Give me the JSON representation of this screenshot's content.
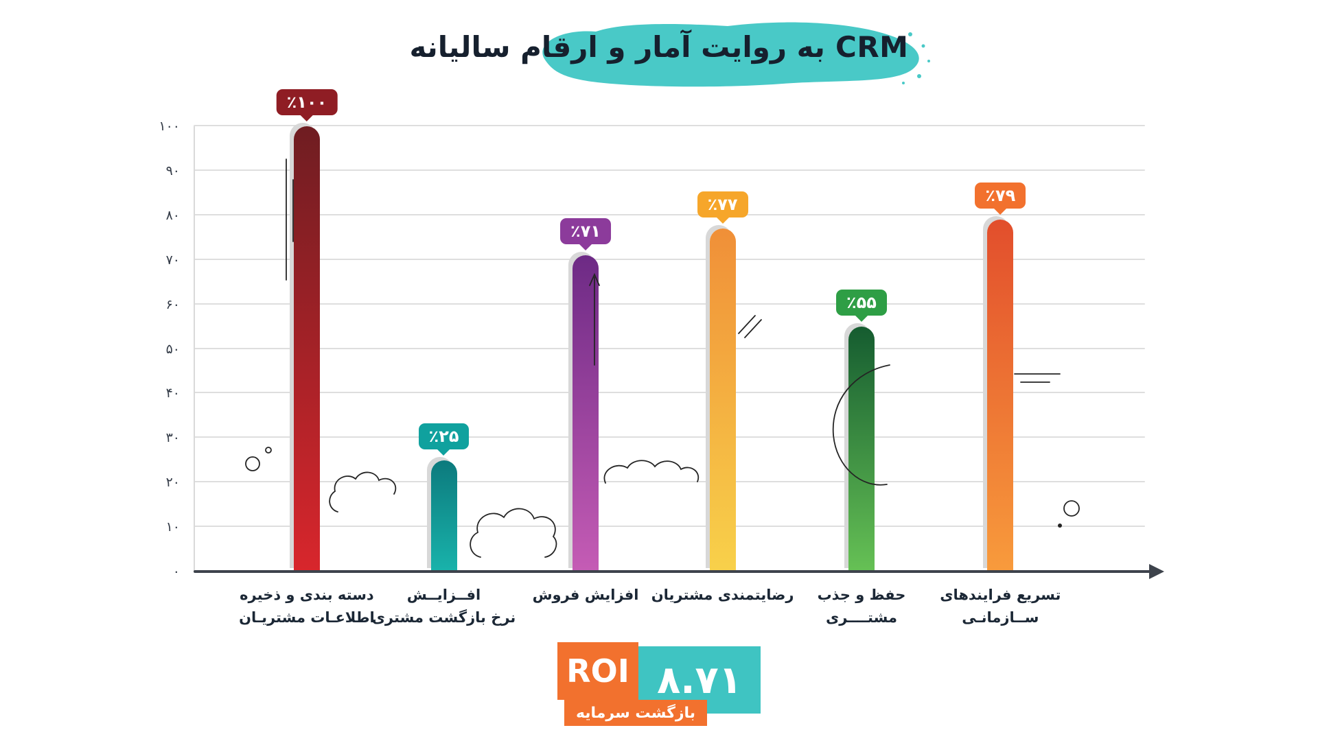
{
  "title": "CRM به روایت آمار و ارقام سالیانه",
  "chart_data": {
    "type": "bar",
    "title": "CRM به روایت آمار و ارقام سالیانه",
    "xlabel": "",
    "ylabel": "",
    "ylim": [
      0,
      100
    ],
    "grid": true,
    "legend_position": "none",
    "y_ticks": [
      "۰",
      "۱۰",
      "۲۰",
      "۳۰",
      "۴۰",
      "۵۰",
      "۶۰",
      "۷۰",
      "۸۰",
      "۹۰",
      "۱۰۰"
    ],
    "categories": [
      "دسته بندی و ذخیره اطلاعات مشتریان",
      "افزایش نرخ بازگشت مشتری",
      "افزایش فروش",
      "رضایتمندی مشتریان",
      "حفظ و جذب مشتری",
      "تسریع فرایندهای سازمانی"
    ],
    "values": [
      100,
      25,
      71,
      77,
      55,
      79
    ],
    "bars": [
      {
        "value": 100,
        "badge": "٪۱۰۰",
        "label_lines": [
          "دسته بندی و ذخیره",
          "اطلاعـات مشتریـان"
        ],
        "color_top": "#6f1d22",
        "color_bottom": "#d8262c",
        "badge_color": "#8f1d24"
      },
      {
        "value": 25,
        "badge": "٪۲۵",
        "label_lines": [
          "افــزایــش",
          "نرخ بازگشت مشتری"
        ],
        "color_top": "#0c7a7d",
        "color_bottom": "#19b3ab",
        "badge_color": "#10a19e"
      },
      {
        "value": 71,
        "badge": "٪۷۱",
        "label_lines": [
          "افزایش فروش"
        ],
        "color_top": "#6d2a85",
        "color_bottom": "#c55cb5",
        "badge_color": "#8c3b9b"
      },
      {
        "value": 77,
        "badge": "٪۷۷",
        "label_lines": [
          "رضایتمندی مشتریان"
        ],
        "color_top": "#f08f38",
        "color_bottom": "#f8d14a",
        "badge_color": "#f6a62a"
      },
      {
        "value": 55,
        "badge": "٪۵۵",
        "label_lines": [
          "حفظ و جذب",
          "مشتــــری"
        ],
        "color_top": "#155c30",
        "color_bottom": "#66c155",
        "badge_color": "#2e9e45"
      },
      {
        "value": 79,
        "badge": "٪۷۹",
        "label_lines": [
          "تسریع فرایندهای",
          "ســازمانـی"
        ],
        "color_top": "#e24e2c",
        "color_bottom": "#f89b3c",
        "badge_color": "#f2712e"
      }
    ]
  },
  "roi": {
    "label": "ROI",
    "value": "۸.۷۱",
    "caption": "بازگشت سرمایه"
  },
  "colors": {
    "blob": "#49c9c7",
    "title": "#16202e",
    "axis": "#3e434c",
    "grid": "#dedede",
    "roi_orange": "#f2712e",
    "roi_teal": "#3fc4c2"
  }
}
